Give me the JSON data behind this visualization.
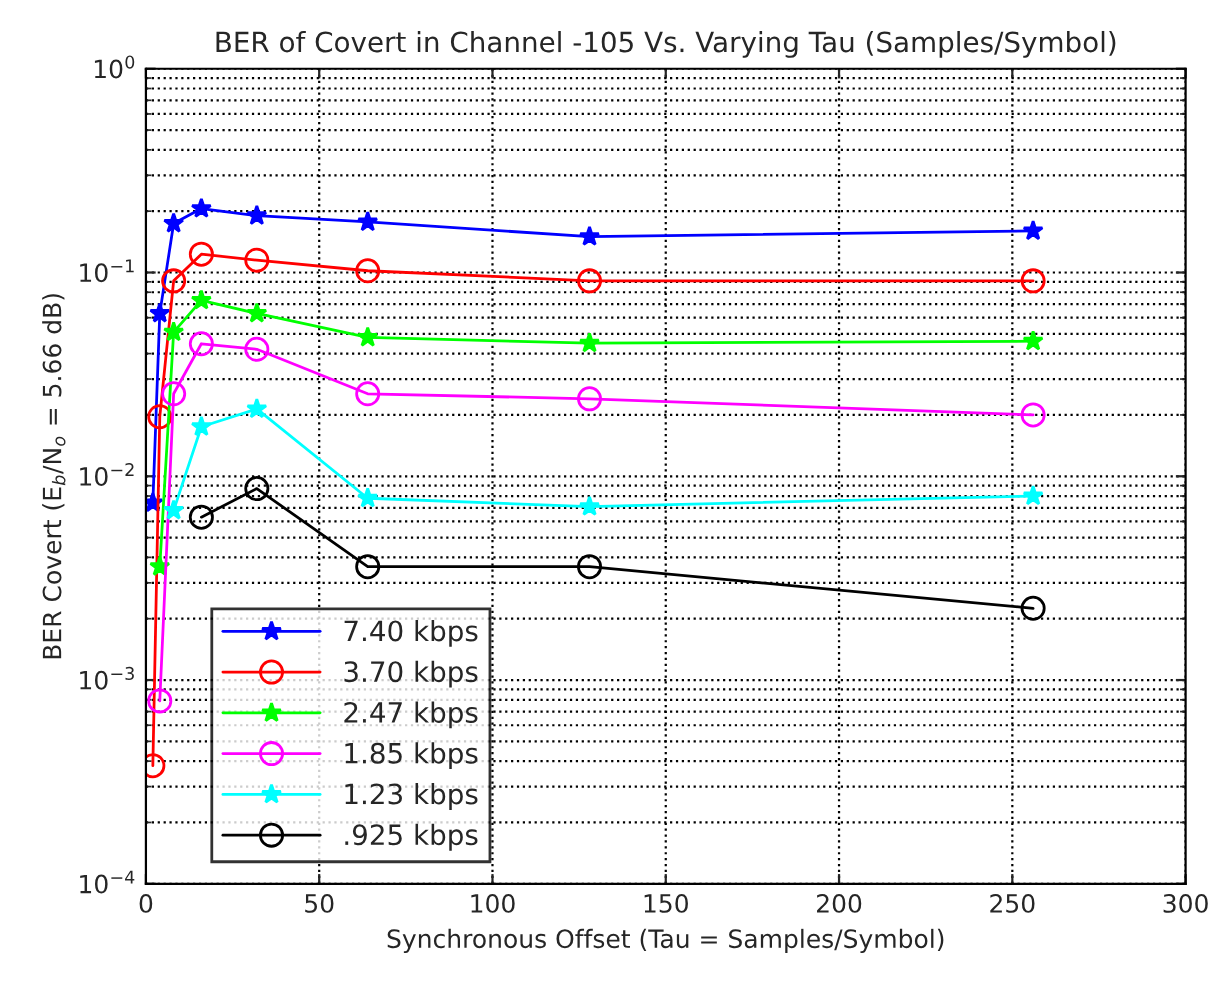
{
  "chart_data": {
    "type": "line",
    "title": "BER of Covert in Channel -105 Vs. Varying Tau (Samples/Symbol)",
    "xlabel": "Synchronous Offset (Tau = Samples/Symbol)",
    "ylabel": "BER Covert (E$_{b}$/N$_{o}$ = 5.66 dB)",
    "log": "y",
    "grid": true,
    "legend": "bottom left",
    "line_style": "solid",
    "xlim": [
      0,
      300
    ],
    "xticks": [
      0,
      50,
      100,
      150,
      200,
      250,
      300
    ],
    "ylim": [
      0.0001,
      1
    ],
    "yticks": [
      {
        "value": 0.0001,
        "label": "10$^{−4}$"
      },
      {
        "value": 0.001,
        "label": "10$^{−3}$"
      },
      {
        "value": 0.01,
        "label": "10$^{−2}$"
      },
      {
        "value": 0.1,
        "label": "10$^{−1}$"
      },
      {
        "value": 1,
        "label": "10$^{0}$"
      }
    ],
    "series": [
      {
        "name": "7.40 kbps",
        "color": "#0000ff",
        "marker": "star",
        "x": [
          2,
          4,
          8,
          16,
          32,
          64,
          128,
          256
        ],
        "values": [
          0.0074,
          0.063,
          0.174,
          0.206,
          0.19,
          0.177,
          0.15,
          0.16
        ]
      },
      {
        "name": "3.70 kbps",
        "color": "#ff0000",
        "marker": "circle",
        "x": [
          2,
          4,
          8,
          16,
          32,
          64,
          128,
          256
        ],
        "values": [
          0.00038,
          0.0196,
          0.091,
          0.123,
          0.115,
          0.102,
          0.091,
          0.091
        ]
      },
      {
        "name": "2.47 kbps",
        "color": "#00ff00",
        "marker": "star",
        "x": [
          4,
          8,
          16,
          32,
          64,
          128,
          256
        ],
        "values": [
          0.0036,
          0.051,
          0.073,
          0.063,
          0.048,
          0.045,
          0.046
        ]
      },
      {
        "name": "1.85 kbps",
        "color": "#ff00ff",
        "marker": "circle",
        "x": [
          4,
          8,
          16,
          32,
          64,
          128,
          256
        ],
        "values": [
          0.00079,
          0.0254,
          0.0447,
          0.042,
          0.0254,
          0.024,
          0.02
        ]
      },
      {
        "name": "1.23 kbps",
        "color": "#00ffff",
        "marker": "star",
        "x": [
          8,
          16,
          32,
          64,
          128,
          256
        ],
        "values": [
          0.0068,
          0.0175,
          0.0214,
          0.0078,
          0.0071,
          0.008
        ]
      },
      {
        "name": ".925 kbps",
        "color": "#000000",
        "marker": "circle",
        "x": [
          16,
          32,
          64,
          128,
          256
        ],
        "values": [
          0.0063,
          0.0087,
          0.0036,
          0.0036,
          0.00225
        ]
      }
    ]
  }
}
